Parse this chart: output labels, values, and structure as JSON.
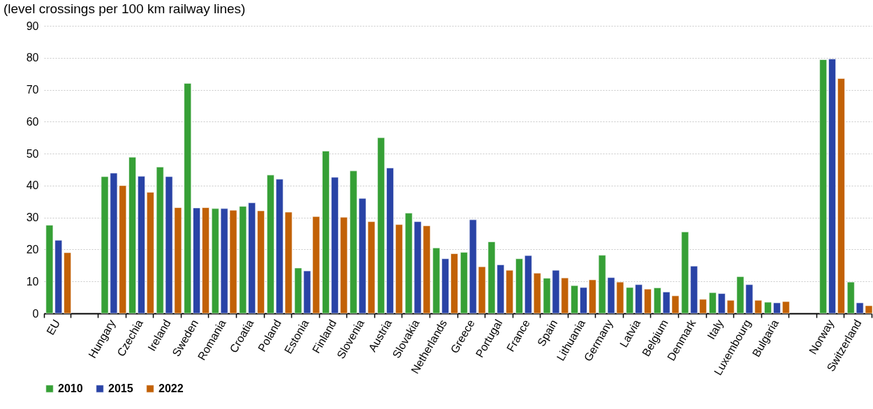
{
  "chart_data": {
    "type": "bar",
    "title": "(level crossings per 100 km railway lines)",
    "categories": [
      "EU",
      null,
      "Hungary",
      "Czechia",
      "Ireland",
      "Sweden",
      "Romania",
      "Croatia",
      "Poland",
      "Estonia",
      "Finland",
      "Slovenia",
      "Austria",
      "Slovakia",
      "Netherlands",
      "Greece",
      "Portugal",
      "France",
      "Spain",
      "Lithuania",
      "Germany",
      "Latvia",
      "Belgium",
      "Denmark",
      "Italy",
      "Luxembourg",
      "Bulgaria",
      null,
      "Norway",
      "Switzerland"
    ],
    "series": [
      {
        "name": "2010",
        "color": "#36a036",
        "values": [
          27.6,
          null,
          42.8,
          48.9,
          45.8,
          72.0,
          32.8,
          33.5,
          43.3,
          14.2,
          50.8,
          44.6,
          55.0,
          31.4,
          20.5,
          19.1,
          22.4,
          17.1,
          11.0,
          8.7,
          18.2,
          8.1,
          8.0,
          25.5,
          6.5,
          11.5,
          3.5,
          null,
          79.4,
          9.8
        ]
      },
      {
        "name": "2015",
        "color": "#2943a6",
        "values": [
          22.9,
          null,
          43.9,
          42.9,
          42.8,
          33.0,
          32.8,
          34.6,
          42.0,
          13.3,
          42.6,
          36.0,
          45.5,
          28.7,
          17.1,
          29.3,
          15.2,
          18.1,
          13.5,
          8.1,
          11.2,
          9.0,
          6.7,
          14.8,
          6.2,
          9.0,
          3.3,
          null,
          79.6,
          3.3
        ]
      },
      {
        "name": "2022",
        "color": "#c26106",
        "values": [
          19.0,
          null,
          40.0,
          37.9,
          33.1,
          33.1,
          32.3,
          32.1,
          31.7,
          30.3,
          30.1,
          28.7,
          27.8,
          27.4,
          18.7,
          14.6,
          13.5,
          12.6,
          11.1,
          10.5,
          9.8,
          7.6,
          5.5,
          4.4,
          4.1,
          4.1,
          3.7,
          null,
          73.5,
          2.4
        ]
      }
    ],
    "ylim": [
      0,
      90
    ],
    "yticks": [
      0,
      10,
      20,
      30,
      40,
      50,
      60,
      70,
      80,
      90
    ],
    "grid": "y",
    "legend": "bottom"
  }
}
